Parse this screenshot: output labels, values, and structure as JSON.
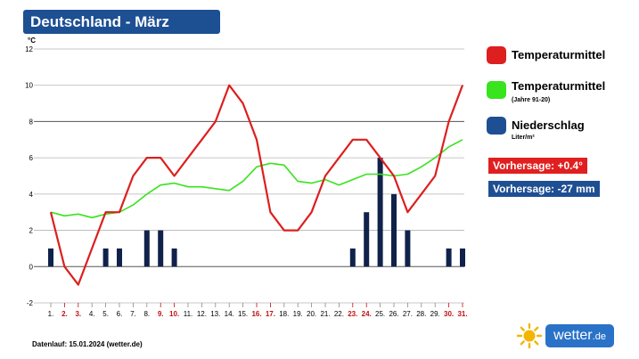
{
  "header": {
    "title": "Deutschland - März"
  },
  "legend": {
    "temp_label": "Temperaturmittel",
    "clim_label": "Temperaturmittel",
    "clim_sub": "(Jahre 91-20)",
    "precip_label": "Niederschlag",
    "precip_unit": "Liter/m²"
  },
  "forecast": {
    "temp": "Vorhersage: +0.4°",
    "precip": "Vorhersage: -27 mm"
  },
  "footer": {
    "text": "Datenlauf: 15.01.2024 (wetter.de)"
  },
  "brand": {
    "name": "wetter",
    "tld": ".de"
  },
  "colors": {
    "title_bg": "#1d4f93",
    "temperature": "#dd1f1f",
    "climate": "#39e31e",
    "precipitation": "#10224a",
    "forecast_temp_bg": "#e02020",
    "forecast_precip_bg": "#1f4f93",
    "brand_bg": "#2a72c8",
    "sun": "#f2b600"
  },
  "icons": {
    "brand_logo": "sun-icon"
  },
  "chart_data": {
    "type": "line",
    "y_unit": "°C",
    "ylim": [
      -2,
      12
    ],
    "yticks": [
      -2,
      0,
      2,
      4,
      6,
      8,
      10,
      12
    ],
    "grid": true,
    "legend_position": "right",
    "categories": [
      "1.",
      "2.",
      "3.",
      "4.",
      "5.",
      "6.",
      "7.",
      "8.",
      "9.",
      "10.",
      "11.",
      "12.",
      "13.",
      "14.",
      "15.",
      "16.",
      "17.",
      "18.",
      "19.",
      "20.",
      "21.",
      "22.",
      "23.",
      "24.",
      "25.",
      "26.",
      "27.",
      "28.",
      "29.",
      "30.",
      "31."
    ],
    "weekend_days": [
      "2.",
      "3.",
      "9.",
      "10.",
      "16.",
      "17.",
      "23.",
      "24.",
      "30.",
      "31."
    ],
    "series": [
      {
        "name": "Temperaturmittel",
        "type": "line",
        "values": [
          3,
          0,
          -1,
          1,
          3,
          3,
          5,
          6,
          6,
          5,
          6,
          7,
          8,
          10,
          9,
          7,
          3,
          2,
          2,
          3,
          5,
          6,
          7,
          7,
          6,
          5,
          3,
          4,
          5,
          8,
          10
        ]
      },
      {
        "name": "Temperaturmittel (Jahre 91-20)",
        "type": "line",
        "values": [
          3.0,
          2.8,
          2.9,
          2.7,
          2.9,
          3.0,
          3.4,
          4.0,
          4.5,
          4.6,
          4.4,
          4.4,
          4.3,
          4.2,
          4.7,
          5.5,
          5.7,
          5.6,
          4.7,
          4.6,
          4.8,
          4.5,
          4.8,
          5.1,
          5.1,
          5.0,
          5.1,
          5.5,
          6.0,
          6.6,
          7.0
        ]
      },
      {
        "name": "Niederschlag",
        "type": "bar",
        "values": [
          1,
          0,
          0,
          0,
          1,
          1,
          0,
          2,
          2,
          1,
          0,
          0,
          0,
          0,
          0,
          0,
          0,
          0,
          0,
          0,
          0,
          0,
          1,
          3,
          6,
          4,
          2,
          0,
          0,
          1,
          1
        ]
      }
    ]
  }
}
